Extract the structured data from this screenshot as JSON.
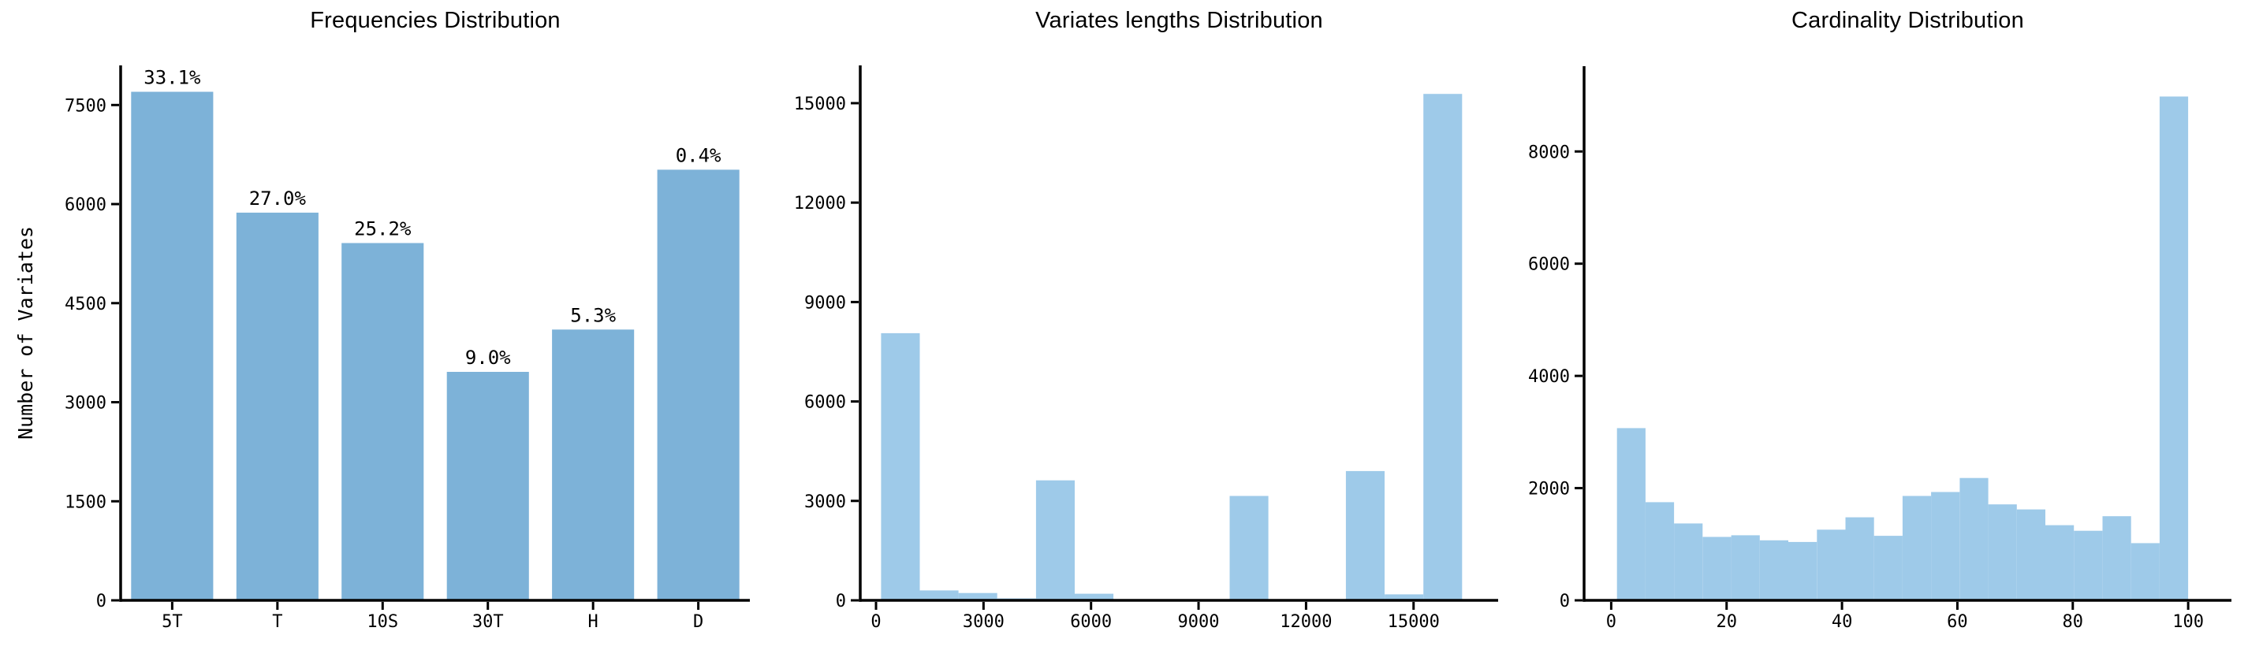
{
  "figure_background": "#ffffff",
  "text_color": "#000000",
  "axis_color": "#000000",
  "chart_data": [
    {
      "type": "bar",
      "title": "Frequencies Distribution",
      "ylabel": "Number of Variates",
      "categories": [
        "5T",
        "T",
        "10S",
        "30T",
        "H",
        "D"
      ],
      "values": [
        7700,
        5870,
        5410,
        3460,
        4100,
        6520
      ],
      "bar_labels": [
        "33.1%",
        "27.0%",
        "25.2%",
        "9.0%",
        "5.3%",
        "0.4%"
      ],
      "yticks": [
        0,
        1500,
        3000,
        4500,
        6000,
        7500
      ],
      "ylim": [
        0,
        8100
      ],
      "bar_color": "#7DB2D8",
      "grid": false,
      "legend": "none"
    },
    {
      "type": "histogram",
      "title": "Variates lengths Distribution",
      "bin_start": 140,
      "bin_width": 1081,
      "counts": [
        8060,
        300,
        220,
        60,
        3620,
        200,
        0,
        0,
        0,
        3150,
        0,
        0,
        3900,
        180,
        15280
      ],
      "xticks": [
        0,
        3000,
        6000,
        9000,
        12000,
        15000
      ],
      "yticks": [
        0,
        3000,
        6000,
        9000,
        12000,
        15000
      ],
      "xlim": [
        -440,
        17360
      ],
      "ylim": [
        0,
        16140
      ],
      "bar_color": "#9ECAE9",
      "grid": false,
      "legend": "none"
    },
    {
      "type": "histogram",
      "title": "Cardinality Distribution",
      "bin_start": 1,
      "bin_width": 4.95,
      "counts": [
        3070,
        1750,
        1370,
        1130,
        1160,
        1070,
        1040,
        1260,
        1480,
        1150,
        1860,
        1930,
        2180,
        1710,
        1620,
        1340,
        1240,
        1500,
        1020,
        8980
      ],
      "xticks": [
        0,
        20,
        40,
        60,
        80,
        100
      ],
      "yticks": [
        0,
        2000,
        4000,
        6000,
        8000
      ],
      "xlim": [
        -4.7,
        107.5
      ],
      "ylim": [
        0,
        9520
      ],
      "bar_color": "#9ECAE9",
      "grid": false,
      "legend": "none"
    }
  ]
}
